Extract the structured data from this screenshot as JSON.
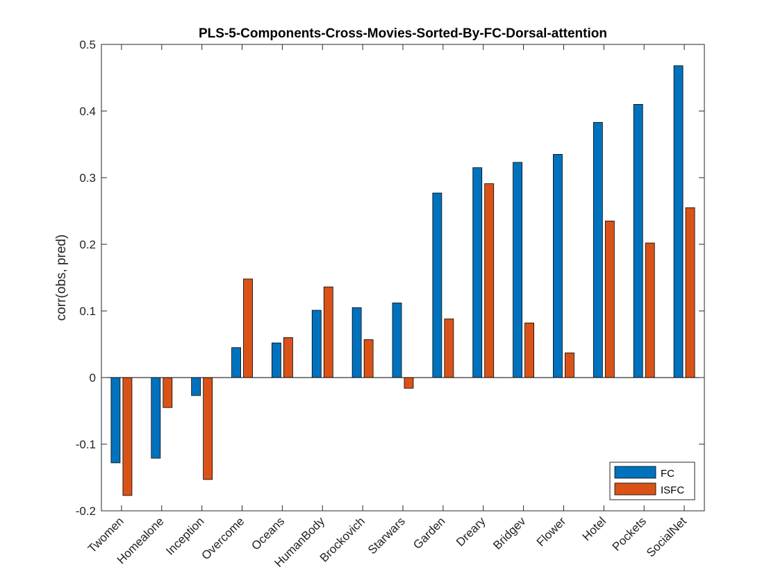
{
  "chart_data": {
    "type": "bar",
    "title": "PLS-5-Components-Cross-Movies-Sorted-By-FC-Dorsal-attention",
    "xlabel": "",
    "ylabel": "corr(obs, pred)",
    "ylim": [
      -0.2,
      0.5
    ],
    "yticks": [
      -0.2,
      -0.1,
      0,
      0.1,
      0.2,
      0.3,
      0.4,
      0.5
    ],
    "ytick_labels": [
      "-0.2",
      "-0.1",
      "0",
      "0.1",
      "0.2",
      "0.3",
      "0.4",
      "0.5"
    ],
    "grid": false,
    "legend_position": "bottom-right",
    "categories": [
      "Twomen",
      "Homealone",
      "Inception",
      "Overcome",
      "Oceans",
      "HumanBody",
      "Brockovich",
      "Starwars",
      "Garden",
      "Dreary",
      "Bridgev",
      "Flower",
      "Hotel",
      "Pockets",
      "SocialNet"
    ],
    "series": [
      {
        "name": "FC",
        "color": "#0072BD",
        "values": [
          -0.128,
          -0.121,
          -0.027,
          0.045,
          0.052,
          0.101,
          0.105,
          0.112,
          0.277,
          0.315,
          0.323,
          0.335,
          0.383,
          0.41,
          0.468
        ]
      },
      {
        "name": "ISFC",
        "color": "#D95319",
        "values": [
          -0.177,
          -0.045,
          -0.153,
          0.148,
          0.06,
          0.136,
          0.057,
          -0.016,
          0.088,
          0.291,
          0.082,
          0.037,
          0.235,
          0.202,
          0.255
        ]
      }
    ]
  }
}
